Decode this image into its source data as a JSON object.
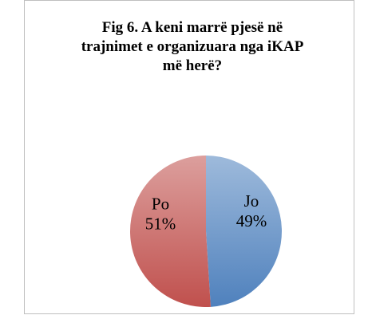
{
  "chart_data": {
    "type": "pie",
    "title": "Fig 6. A keni marrë pjesë në trajnimet e organizuara nga iKAP më herë?",
    "categories": [
      "Jo",
      "Po"
    ],
    "values": [
      49,
      51
    ],
    "value_labels": [
      "49%",
      "51%"
    ],
    "colors": [
      "#4f81bd",
      "#c0504d"
    ]
  }
}
